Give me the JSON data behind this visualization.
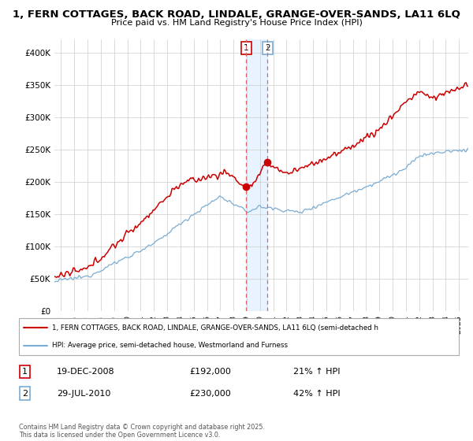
{
  "title": "1, FERN COTTAGES, BACK ROAD, LINDALE, GRANGE-OVER-SANDS, LA11 6LQ",
  "subtitle": "Price paid vs. HM Land Registry's House Price Index (HPI)",
  "ylabel_ticks": [
    "£0",
    "£50K",
    "£100K",
    "£150K",
    "£200K",
    "£250K",
    "£300K",
    "£350K",
    "£400K"
  ],
  "ytick_values": [
    0,
    50000,
    100000,
    150000,
    200000,
    250000,
    300000,
    350000,
    400000
  ],
  "ylim": [
    0,
    420000
  ],
  "xlim_start": 1994.5,
  "xlim_end": 2025.7,
  "sale1_date": 2008.97,
  "sale1_price": 192000,
  "sale2_date": 2010.57,
  "sale2_price": 230000,
  "red_color": "#cc0000",
  "blue_color": "#7aadd4",
  "dash_color": "#dd6666",
  "shade_color": "#ddeeff",
  "background_color": "#ffffff",
  "grid_color": "#cccccc",
  "legend_line1": "1, FERN COTTAGES, BACK ROAD, LINDALE, GRANGE-OVER-SANDS, LA11 6LQ (semi-detached h",
  "legend_line2": "HPI: Average price, semi-detached house, Westmorland and Furness",
  "footer": "Contains HM Land Registry data © Crown copyright and database right 2025.\nThis data is licensed under the Open Government Licence v3.0.",
  "table_row1": [
    "1",
    "19-DEC-2008",
    "£192,000",
    "21% ↑ HPI"
  ],
  "table_row2": [
    "2",
    "29-JUL-2010",
    "£230,000",
    "42% ↑ HPI"
  ],
  "sale1_box_color": "#cc0000",
  "sale2_box_color": "#7aadd4"
}
